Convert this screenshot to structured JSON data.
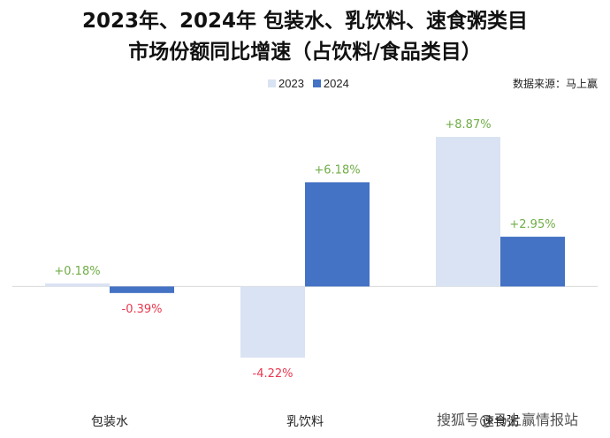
{
  "chart_data": {
    "type": "bar",
    "title": "2023年、2024年 包装水、乳饮料、速食粥类目",
    "subtitle": "市场份额同比增速（占饮料/食品类目）",
    "source": "数据来源：马上赢",
    "categories": [
      "包装水",
      "乳饮料",
      "速食粥"
    ],
    "series": [
      {
        "name": "2023",
        "values": [
          0.18,
          -4.22,
          8.87
        ],
        "labels": [
          "+0.18%",
          "-4.22%",
          "+8.87%"
        ],
        "color": "#dae3f3"
      },
      {
        "name": "2024",
        "values": [
          -0.39,
          6.18,
          2.95
        ],
        "labels": [
          "-0.39%",
          "+6.18%",
          "+2.95%"
        ],
        "color": "#4472c4"
      }
    ],
    "ylim": [
      -4.85,
      9.5
    ],
    "grid": false,
    "legend": "top-center",
    "positive_label_color": "#70ad47",
    "negative_label_color": "#e8384f"
  },
  "watermark": "搜狐号@马上赢情报站"
}
